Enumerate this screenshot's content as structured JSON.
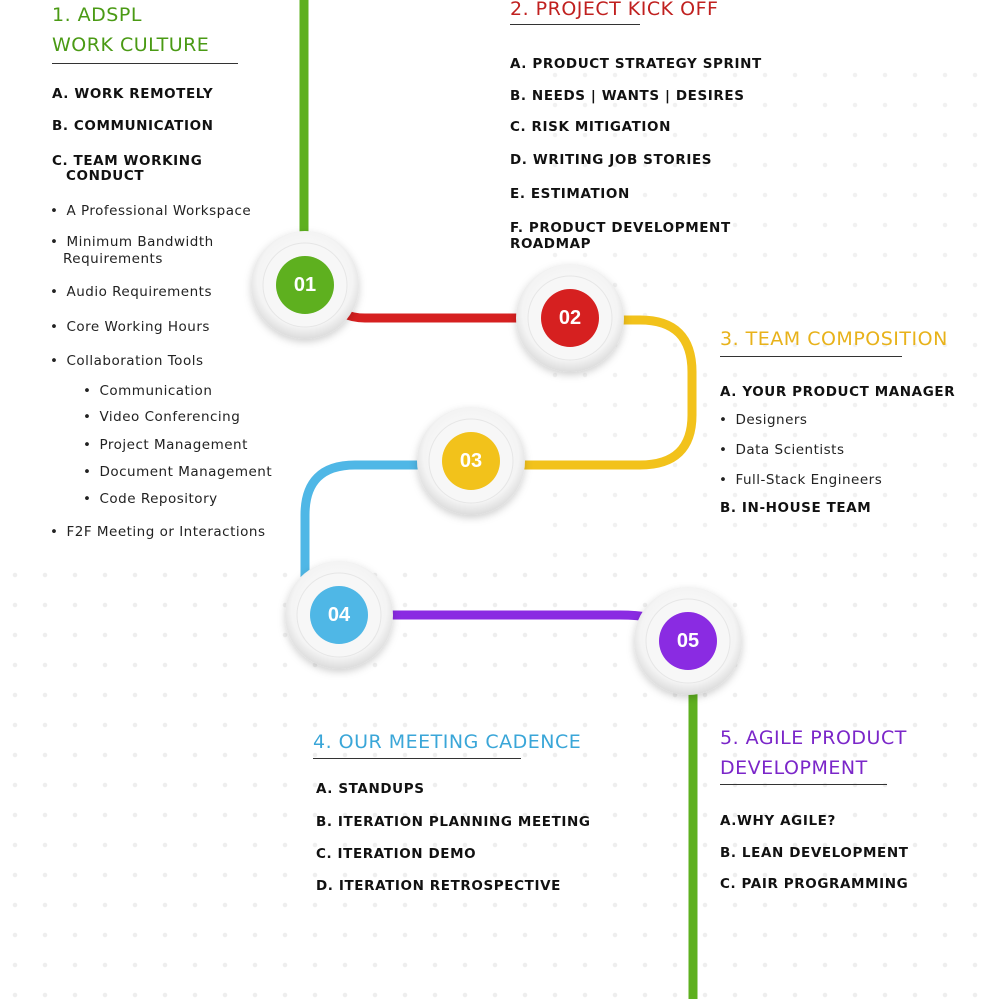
{
  "colors": {
    "green": "#5eb01f",
    "red": "#d62020",
    "yellow": "#f2c21b",
    "blue": "#4fb7e6",
    "purple": "#8a2be2",
    "title_green": "#4a9a14",
    "title_red": "#c0201f",
    "title_yellow": "#e8b21a",
    "title_blue": "#3aa6d8",
    "title_purple": "#7b26c9"
  },
  "nodes": [
    "01",
    "02",
    "03",
    "04",
    "05"
  ],
  "section1": {
    "title_line1": "1. ADSPL",
    "title_line2": "WORK CULTURE",
    "items": [
      "A. WORK REMOTELY",
      "B. COMMUNICATION",
      "C. TEAM WORKING",
      "CONDUCT"
    ],
    "bullets": [
      "A Professional Workspace",
      "Minimum Bandwidth",
      "Requirements",
      "Audio Requirements",
      "Core Working Hours",
      "Collaboration Tools"
    ],
    "sub_bullets": [
      "Communication",
      "Video Conferencing",
      "Project Management",
      "Document Management",
      "Code Repository"
    ],
    "last_bullet": "F2F Meeting or Interactions"
  },
  "section2": {
    "title": "2. PROJECT KICK OFF",
    "items": [
      "A. PRODUCT STRATEGY SPRINT",
      "B. NEEDS | WANTS | DESIRES",
      "C. RISK MITIGATION",
      "D. WRITING JOB STORIES",
      "E. ESTIMATION",
      "F. PRODUCT DEVELOPMENT",
      "ROADMAP"
    ]
  },
  "section3": {
    "title": "3. TEAM COMPOSITION",
    "item_a": "A. YOUR PRODUCT MANAGER",
    "bullets": [
      "Designers",
      "Data Scientists",
      "Full-Stack Engineers"
    ],
    "item_b": "B. IN-HOUSE TEAM"
  },
  "section4": {
    "title": "4. OUR MEETING CADENCE",
    "items": [
      "A. STANDUPS",
      "B. ITERATION PLANNING MEETING",
      "C. ITERATION DEMO",
      "D. ITERATION RETROSPECTIVE"
    ]
  },
  "section5": {
    "title_line1": "5. AGILE PRODUCT",
    "title_line2": "DEVELOPMENT",
    "items": [
      "A.WHY AGILE?",
      "B. LEAN DEVELOPMENT",
      "C. PAIR PROGRAMMING"
    ]
  }
}
